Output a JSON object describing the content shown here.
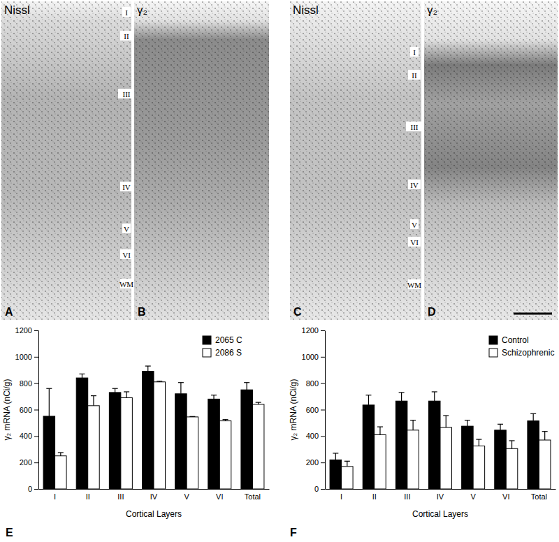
{
  "micrographs": {
    "panels": [
      {
        "letter": "A",
        "stain": "Nissl",
        "layers": [
          "I",
          "II",
          "III",
          "IV",
          "V",
          "VI",
          "WM"
        ]
      },
      {
        "letter": "B",
        "stain": "γ₂"
      },
      {
        "letter": "C",
        "stain": "Nissl",
        "layers": [
          "I",
          "II",
          "III",
          "IV",
          "V",
          "VI",
          "WM"
        ]
      },
      {
        "letter": "D",
        "stain": "γ₂"
      }
    ]
  },
  "chart_data": [
    {
      "type": "bar",
      "annotations": [
        "E"
      ],
      "x_label": "Cortical Layers",
      "y_label": "γ₂ mRNA (nCi/g)",
      "categories": [
        "I",
        "II",
        "III",
        "IV",
        "V",
        "VI",
        "Total"
      ],
      "series": [
        {
          "name": "2065 C",
          "color": "#000000",
          "values": [
            550,
            840,
            730,
            890,
            720,
            680,
            750
          ],
          "errors": [
            210,
            30,
            30,
            40,
            85,
            30,
            55
          ]
        },
        {
          "name": "2086 S",
          "color": "#ffffff",
          "values": [
            250,
            630,
            690,
            810,
            545,
            515,
            640
          ],
          "errors": [
            25,
            75,
            45,
            5,
            3,
            10,
            15
          ]
        }
      ],
      "ylim": [
        0,
        1200
      ],
      "yticks": [
        0,
        200,
        400,
        600,
        800,
        1000,
        1200
      ],
      "legend": "upper right"
    },
    {
      "type": "bar",
      "annotations": [
        "F"
      ],
      "x_label": "Cortical Layers",
      "y_label": "γ₂ mRNA (nCi/g)",
      "categories": [
        "I",
        "II",
        "III",
        "IV",
        "V",
        "VI",
        "Total"
      ],
      "series": [
        {
          "name": "Control",
          "color": "#000000",
          "values": [
            220,
            635,
            665,
            665,
            475,
            445,
            515
          ],
          "errors": [
            50,
            75,
            65,
            70,
            45,
            45,
            55
          ]
        },
        {
          "name": "Schizophrenic",
          "color": "#ffffff",
          "values": [
            170,
            410,
            445,
            465,
            325,
            305,
            370
          ],
          "errors": [
            40,
            60,
            75,
            90,
            50,
            60,
            65
          ]
        }
      ],
      "ylim": [
        0,
        1200
      ],
      "yticks": [
        0,
        200,
        400,
        600,
        800,
        1000,
        1200
      ],
      "legend": "upper right"
    }
  ]
}
